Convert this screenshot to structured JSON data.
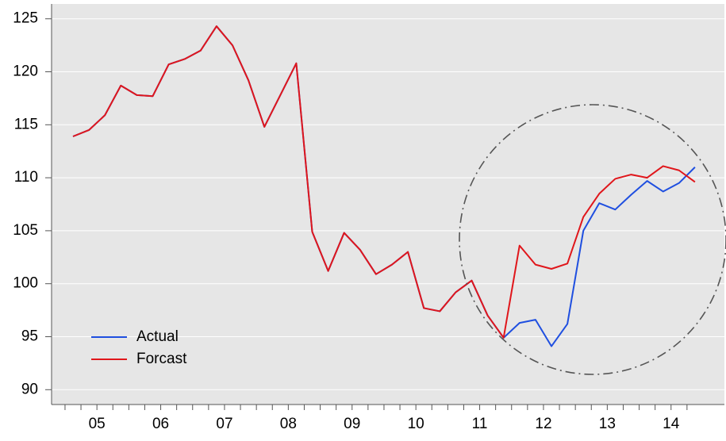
{
  "chart_data": {
    "type": "line",
    "categories": [
      "05",
      null,
      null,
      null,
      "06",
      null,
      null,
      null,
      "07",
      null,
      null,
      null,
      "08",
      null,
      null,
      null,
      "09",
      null,
      null,
      null,
      "10",
      null,
      null,
      null,
      "11",
      null,
      null,
      null,
      "12",
      null,
      null,
      null,
      "13",
      null,
      null,
      null,
      "14",
      null,
      null,
      null
    ],
    "series": [
      {
        "name": "Actual",
        "color": "#1f4fe0",
        "values": [
          113.9,
          114.5,
          115.9,
          118.7,
          117.8,
          117.7,
          120.7,
          121.2,
          122.0,
          124.3,
          122.5,
          119.2,
          114.8,
          117.8,
          120.8,
          104.9,
          101.2,
          104.8,
          103.2,
          100.9,
          101.8,
          103.0,
          97.7,
          97.4,
          99.2,
          100.3,
          97.0,
          94.9,
          96.3,
          96.6,
          94.1,
          96.2,
          105.0,
          107.6,
          107.0,
          108.4,
          109.7,
          108.7,
          109.5,
          111.0
        ]
      },
      {
        "name": "Forcast",
        "color": "#e0161b",
        "values": [
          113.9,
          114.5,
          115.9,
          118.7,
          117.8,
          117.7,
          120.7,
          121.2,
          122.0,
          124.3,
          122.5,
          119.2,
          114.8,
          117.8,
          120.8,
          104.9,
          101.2,
          104.8,
          103.2,
          100.9,
          101.8,
          103.0,
          97.7,
          97.4,
          99.2,
          100.3,
          97.0,
          94.9,
          103.6,
          101.8,
          101.4,
          101.9,
          106.3,
          108.5,
          109.9,
          110.3,
          110.0,
          111.1,
          110.7,
          109.6
        ]
      }
    ],
    "ylim": [
      88.6,
      126.4
    ],
    "yticks": [
      90,
      95,
      100,
      105,
      110,
      115,
      120,
      125
    ],
    "grid": true,
    "legend": "lower left"
  }
}
